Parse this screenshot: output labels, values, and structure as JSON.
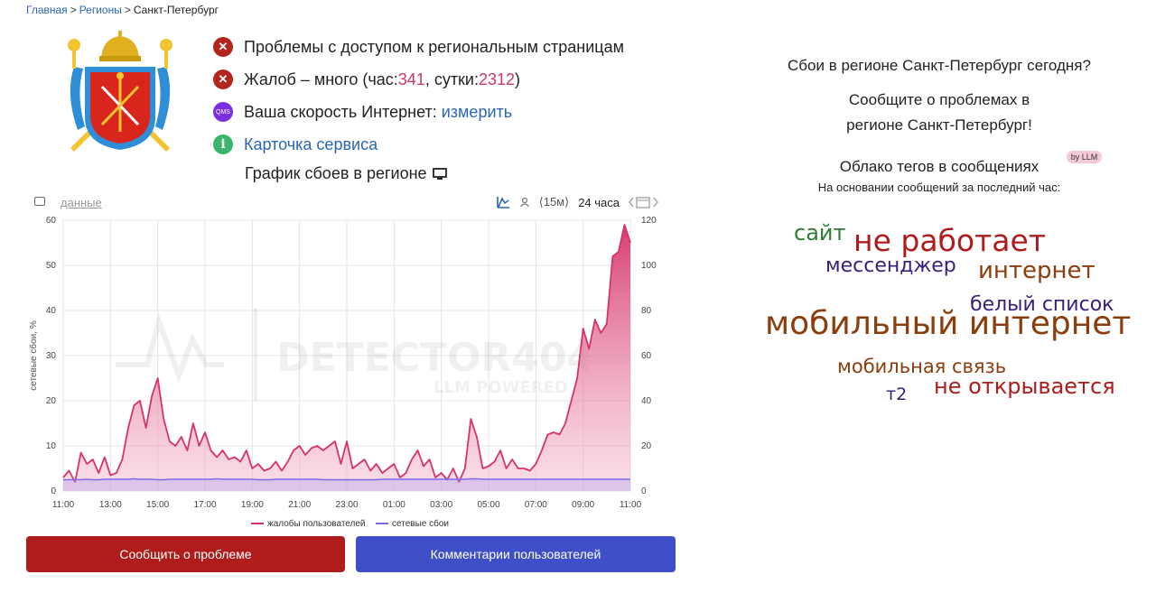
{
  "breadcrumb": {
    "home": "Главная",
    "regions": "Регионы",
    "current": "Санкт-Петербург",
    "sep": ">"
  },
  "status": {
    "access_problem": "Проблемы с доступом к региональным страницам",
    "complaints_prefix": "Жалоб – много (час: ",
    "complaints_hour": "341",
    "complaints_mid": ", сутки: ",
    "complaints_day": "2312",
    "complaints_suffix": ")",
    "speed_label": "Ваша скорость Интернет: ",
    "speed_link": "измерить",
    "qms_icon_text": "QMS",
    "service_card": "Карточка сервиса",
    "info_icon_text": "i",
    "err_icon_text": "✕"
  },
  "graph": {
    "title": "График сбоев в регионе",
    "data_link": "данные",
    "period_15m": "⟨15м⟩",
    "period_24h": "24 часа",
    "watermark_main": "DETECTOR404",
    "watermark_sub": "LLM POWERED"
  },
  "chart_data": {
    "type": "area",
    "x_ticks": [
      "11:00",
      "13:00",
      "15:00",
      "17:00",
      "19:00",
      "21:00",
      "23:00",
      "01:00",
      "03:00",
      "05:00",
      "07:00",
      "09:00",
      "11:00"
    ],
    "y_left_label": "сетевые сбои, %",
    "y_left_ticks": [
      0,
      10,
      20,
      30,
      40,
      50,
      60
    ],
    "y_left_lim": [
      0,
      60
    ],
    "y_right_label": "жалобы пользователей",
    "y_right_ticks": [
      0,
      20,
      40,
      60,
      80,
      100,
      120
    ],
    "y_right_lim": [
      0,
      120
    ],
    "x_hours": [
      0,
      0.25,
      0.5,
      0.75,
      1,
      1.25,
      1.5,
      1.75,
      2,
      2.25,
      2.5,
      2.75,
      3,
      3.25,
      3.5,
      3.75,
      4,
      4.25,
      4.5,
      4.75,
      5,
      5.25,
      5.5,
      5.75,
      6,
      6.25,
      6.5,
      6.75,
      7,
      7.25,
      7.5,
      7.75,
      8,
      8.25,
      8.5,
      8.75,
      9,
      9.25,
      9.5,
      9.75,
      10,
      10.25,
      10.5,
      10.75,
      11,
      11.25,
      11.5,
      11.75,
      12,
      12.25,
      12.5,
      12.75,
      13,
      13.25,
      13.5,
      13.75,
      14,
      14.25,
      14.5,
      14.75,
      15,
      15.25,
      15.5,
      15.75,
      16,
      16.25,
      16.5,
      16.75,
      17,
      17.25,
      17.5,
      17.75,
      18,
      18.25,
      18.5,
      18.75,
      19,
      19.25,
      19.5,
      19.75,
      20,
      20.25,
      20.5,
      20.75,
      21,
      21.25,
      21.5,
      21.75,
      22,
      22.25,
      22.5,
      22.75,
      23,
      23.25,
      23.5,
      23.75,
      24
    ],
    "series": [
      {
        "name": "жалобы пользователей",
        "axis": "right",
        "color": "#d6336c",
        "values": [
          6,
          9,
          4,
          17,
          12,
          14,
          8,
          15,
          7,
          8,
          14,
          28,
          38,
          40,
          28,
          42,
          50,
          32,
          22,
          20,
          24,
          18,
          30,
          20,
          26,
          18,
          15,
          18,
          14,
          15,
          13,
          18,
          10,
          12,
          9,
          10,
          13,
          9,
          13,
          18,
          20,
          16,
          19,
          20,
          18,
          20,
          22,
          12,
          22,
          10,
          12,
          14,
          9,
          12,
          8,
          10,
          12,
          6,
          8,
          14,
          18,
          11,
          14,
          6,
          8,
          5,
          10,
          4,
          10,
          32,
          24,
          10,
          11,
          13,
          18,
          10,
          14,
          10,
          10,
          9,
          12,
          18,
          25,
          26,
          25,
          30,
          40,
          50,
          72,
          63,
          76,
          70,
          74,
          104,
          106,
          118,
          110
        ]
      },
      {
        "name": "сетевые сбои",
        "axis": "left",
        "color": "#7d6ae8",
        "values": [
          2.5,
          2.5,
          2.5,
          2.5,
          2.6,
          2.5,
          2.5,
          2.6,
          2.6,
          2.6,
          2.6,
          2.6,
          2.7,
          2.6,
          2.6,
          2.6,
          2.5,
          2.5,
          2.6,
          2.6,
          2.6,
          2.6,
          2.6,
          2.6,
          2.6,
          2.6,
          2.7,
          2.6,
          2.6,
          2.6,
          2.6,
          2.6,
          2.6,
          2.5,
          2.5,
          2.5,
          2.6,
          2.6,
          2.6,
          2.6,
          2.6,
          2.6,
          2.6,
          2.6,
          2.5,
          2.5,
          2.5,
          2.5,
          2.5,
          2.5,
          2.5,
          2.5,
          2.5,
          2.5,
          2.6,
          2.6,
          2.6,
          2.6,
          2.6,
          2.6,
          2.6,
          2.6,
          2.6,
          2.6,
          2.6,
          2.6,
          2.6,
          2.6,
          2.6,
          2.7,
          2.7,
          2.6,
          2.6,
          2.6,
          2.6,
          2.6,
          2.6,
          2.6,
          2.6,
          2.6,
          2.6,
          2.6,
          2.6,
          2.6,
          2.6,
          2.6,
          2.6,
          2.6,
          2.6,
          2.6,
          2.6,
          2.6,
          2.6,
          2.6,
          2.6,
          2.6,
          2.6
        ]
      }
    ],
    "legend": [
      "жалобы пользователей",
      "сетевые сбои"
    ],
    "legend_position": "bottom",
    "grid": true
  },
  "buttons": {
    "report": "Сообщить о проблеме",
    "comments": "Комментарии пользователей"
  },
  "right": {
    "question": "Сбои в регионе Санкт-Петербург сегодня?",
    "report_line1": "Сообщите о проблемах в",
    "report_line2": "регионе Санкт-Петербург!",
    "cloud_title": "Облако тегов в сообщениях",
    "llm_badge": "by LLM",
    "cloud_sub": "На основании сообщений за последний час:"
  },
  "tag_cloud": [
    {
      "text": "сайт",
      "color": "#2e7d32"
    },
    {
      "text": "не работает",
      "color": "#b01c1c"
    },
    {
      "text": "мессенджер",
      "color": "#3a1f7a"
    },
    {
      "text": "интернет",
      "color": "#8b3d0c"
    },
    {
      "text": "белый список",
      "color": "#3a1f7a"
    },
    {
      "text": "мобильный интернет",
      "color": "#8b3d0c"
    },
    {
      "text": "мобильная связь",
      "color": "#8b3d0c"
    },
    {
      "text": "т2",
      "color": "#3a1f7a"
    },
    {
      "text": "не открывается",
      "color": "#b01c1c"
    }
  ]
}
